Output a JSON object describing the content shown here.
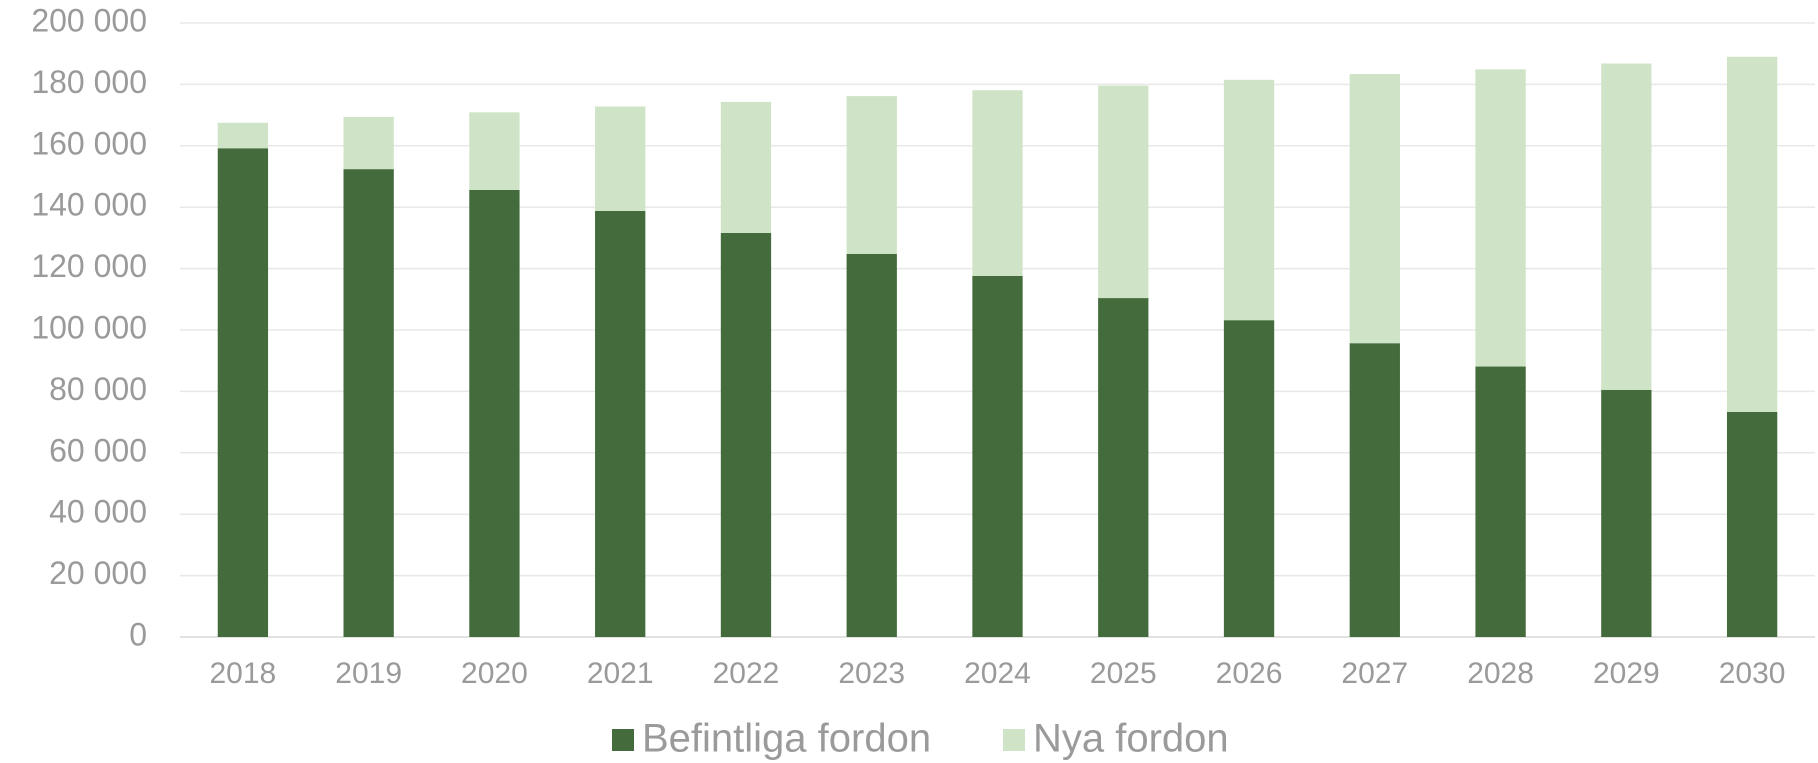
{
  "chart_data": {
    "type": "stacked_bar",
    "categories": [
      "2018",
      "2019",
      "2020",
      "2021",
      "2022",
      "2023",
      "2024",
      "2025",
      "2026",
      "2027",
      "2028",
      "2029",
      "2030"
    ],
    "series": [
      {
        "name": "Befintliga fordon",
        "color": "#436b3c",
        "values": [
          159200,
          152400,
          145600,
          138800,
          131600,
          124800,
          117600,
          110400,
          103200,
          95700,
          88100,
          80500,
          73300
        ]
      },
      {
        "name": "Nya fordon",
        "color": "#cfe4c6",
        "values": [
          8300,
          17000,
          25300,
          34000,
          42700,
          51400,
          60500,
          69200,
          78300,
          87700,
          96800,
          106300,
          115700
        ]
      }
    ],
    "ylim": [
      0,
      200000
    ],
    "yticks": [
      {
        "value": 0,
        "label": "0"
      },
      {
        "value": 20000,
        "label": "20 000"
      },
      {
        "value": 40000,
        "label": "40 000"
      },
      {
        "value": 60000,
        "label": "60 000"
      },
      {
        "value": 80000,
        "label": "80 000"
      },
      {
        "value": 100000,
        "label": "100 000"
      },
      {
        "value": 120000,
        "label": "120 000"
      },
      {
        "value": 140000,
        "label": "140 000"
      },
      {
        "value": 160000,
        "label": "160 000"
      },
      {
        "value": 180000,
        "label": "180 000"
      },
      {
        "value": 200000,
        "label": "200 000"
      }
    ],
    "grid": true,
    "legend": "bottom"
  }
}
